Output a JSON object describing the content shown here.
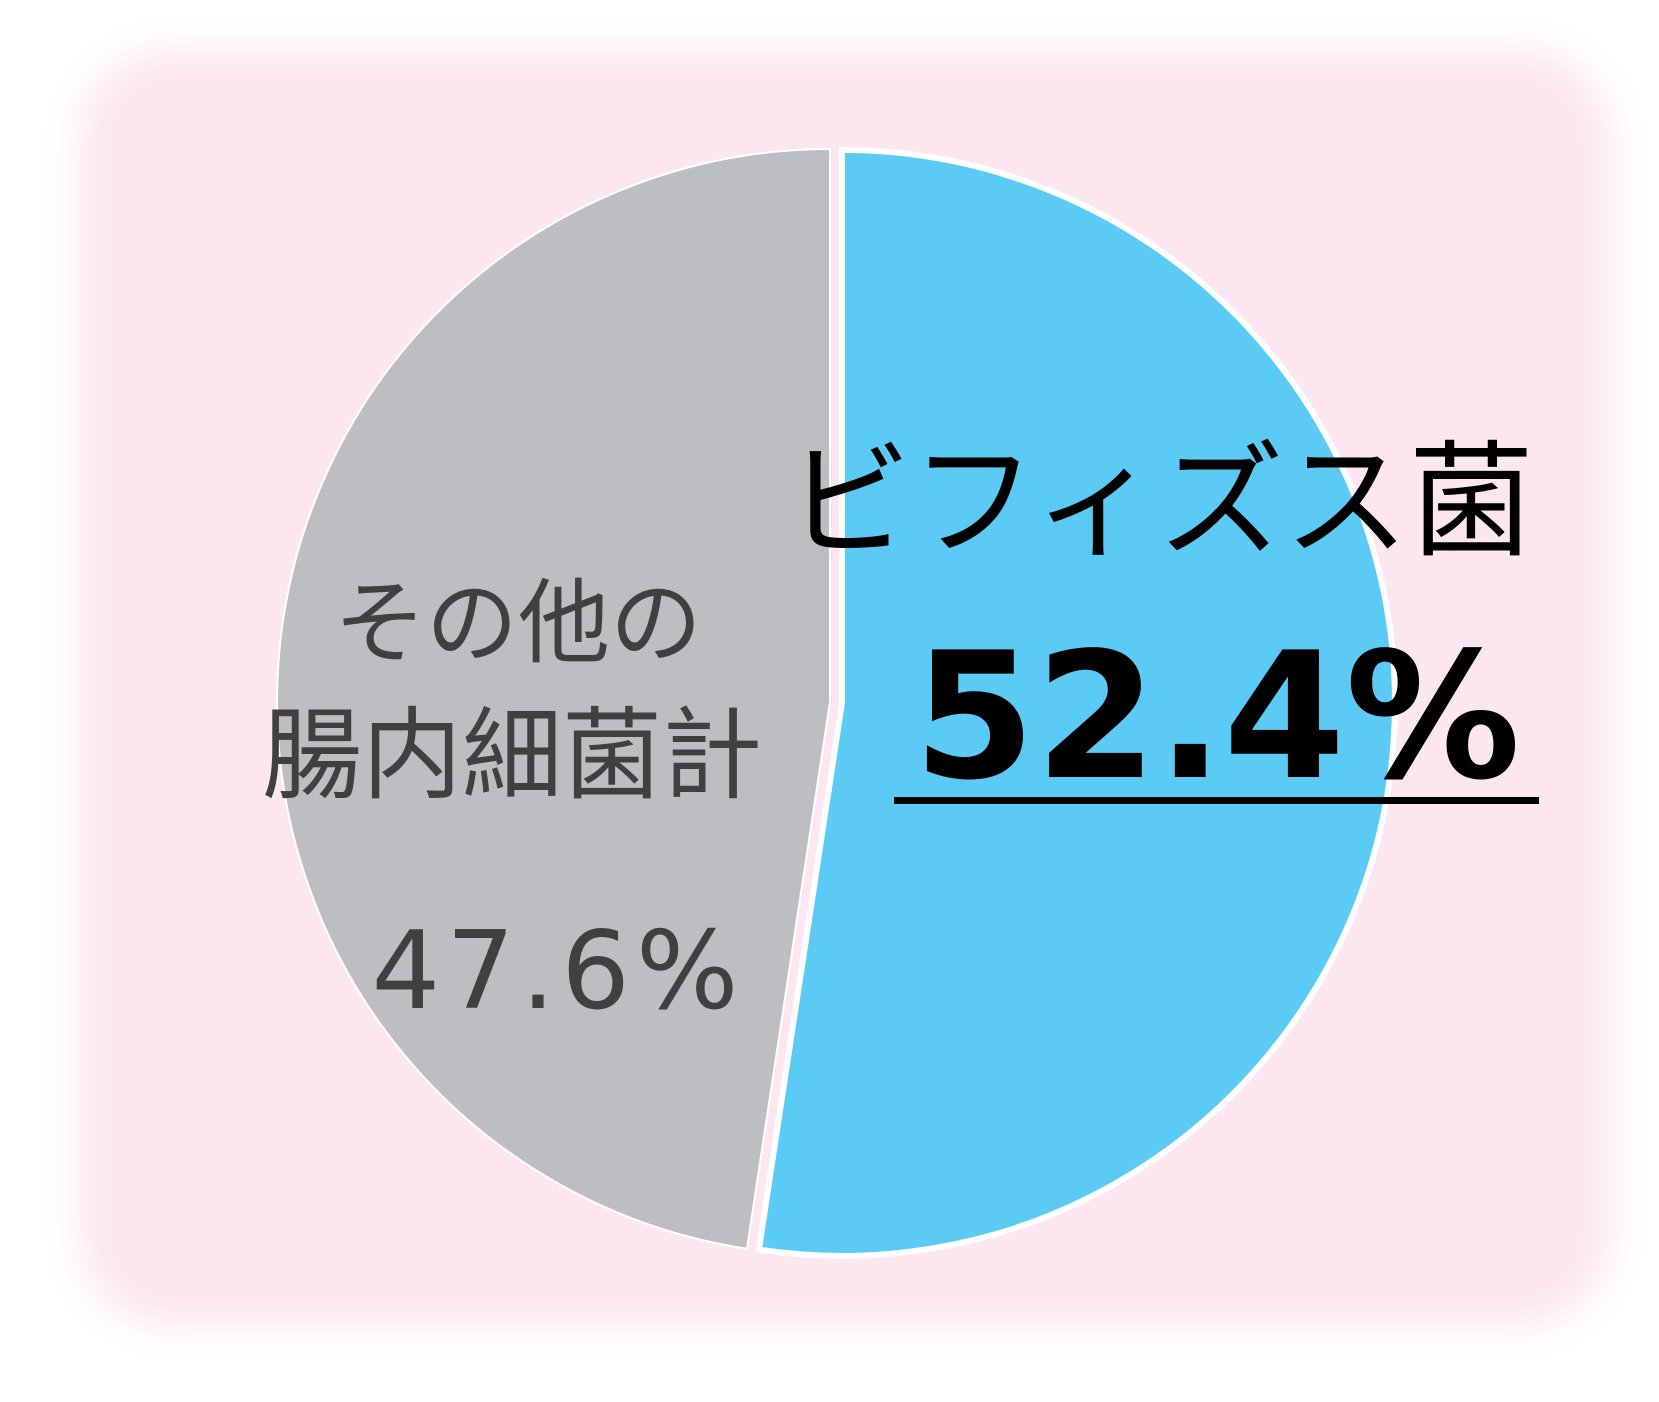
{
  "chart_data": {
    "type": "pie",
    "categories": [
      "ビフィズス菌",
      "その他の腸内細菌計"
    ],
    "values": [
      52.4,
      47.6
    ],
    "unit": "%",
    "labels": [
      {
        "name_line1": "ビフィズス菌",
        "value_text": "52.4%"
      },
      {
        "name_line1": "その他の",
        "name_line2": "腸内細菌計",
        "value_text": "47.6%"
      }
    ],
    "colors": [
      "#5bcbf5",
      "#bcbec1"
    ],
    "label_colors": [
      "#000000",
      "#404040"
    ],
    "background": "#fce6ef",
    "legend": "none"
  }
}
